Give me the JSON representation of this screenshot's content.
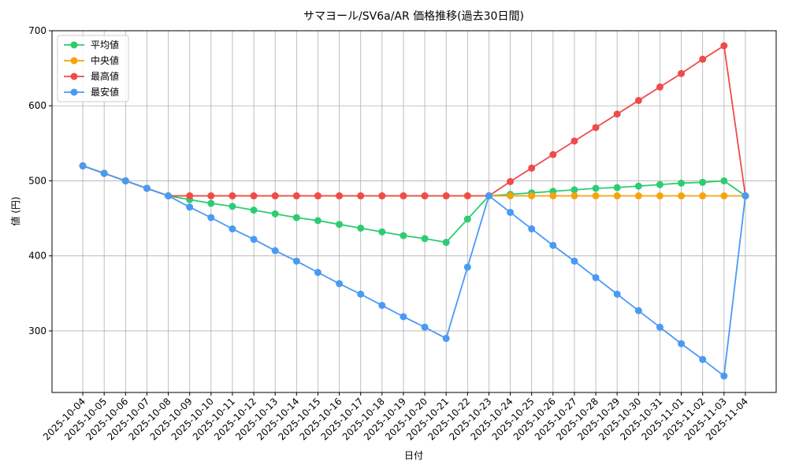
{
  "chart_data": {
    "type": "line",
    "title": "サマヨール/SV6a/AR 価格推移(過去30日間)",
    "x_label": "日付",
    "y_label": "値 (円)",
    "categories": [
      "2025-10-04",
      "2025-10-05",
      "2025-10-06",
      "2025-10-07",
      "2025-10-08",
      "2025-10-09",
      "2025-10-10",
      "2025-10-11",
      "2025-10-12",
      "2025-10-13",
      "2025-10-14",
      "2025-10-15",
      "2025-10-16",
      "2025-10-17",
      "2025-10-18",
      "2025-10-19",
      "2025-10-20",
      "2025-10-21",
      "2025-10-22",
      "2025-10-23",
      "2025-10-24",
      "2025-10-25",
      "2025-10-26",
      "2025-10-27",
      "2025-10-28",
      "2025-10-29",
      "2025-10-30",
      "2025-10-31",
      "2025-11-01",
      "2025-11-02",
      "2025-11-03",
      "2025-11-04"
    ],
    "series": [
      {
        "name": "平均値",
        "color": "#2ecc71",
        "values": [
          520,
          510,
          500,
          490,
          480,
          475,
          470,
          466,
          461,
          456,
          451,
          447,
          442,
          437,
          432,
          427,
          423,
          418,
          449,
          480,
          482,
          484,
          486,
          488,
          490,
          491,
          493,
          495,
          497,
          498,
          500,
          480
        ]
      },
      {
        "name": "中央値",
        "color": "#f5a30f",
        "values": [
          520,
          510,
          500,
          490,
          480,
          480,
          480,
          480,
          480,
          480,
          480,
          480,
          480,
          480,
          480,
          480,
          480,
          480,
          480,
          480,
          480,
          480,
          480,
          480,
          480,
          480,
          480,
          480,
          480,
          480,
          480,
          480
        ]
      },
      {
        "name": "最高値",
        "color": "#ef4b4b",
        "values": [
          520,
          510,
          500,
          490,
          480,
          480,
          480,
          480,
          480,
          480,
          480,
          480,
          480,
          480,
          480,
          480,
          480,
          480,
          480,
          480,
          499,
          517,
          535,
          553,
          571,
          589,
          607,
          625,
          643,
          662,
          680,
          480
        ]
      },
      {
        "name": "最安値",
        "color": "#4a9af5",
        "values": [
          520,
          510,
          500,
          490,
          480,
          465,
          451,
          436,
          422,
          407,
          393,
          378,
          363,
          349,
          334,
          319,
          305,
          290,
          385,
          480,
          458,
          436,
          414,
          393,
          371,
          349,
          327,
          305,
          283,
          262,
          240,
          480
        ]
      }
    ],
    "ylim": [
      218,
      700
    ],
    "yticks": [
      300,
      400,
      500,
      600,
      700
    ],
    "grid": true,
    "legend": "upper-left"
  }
}
